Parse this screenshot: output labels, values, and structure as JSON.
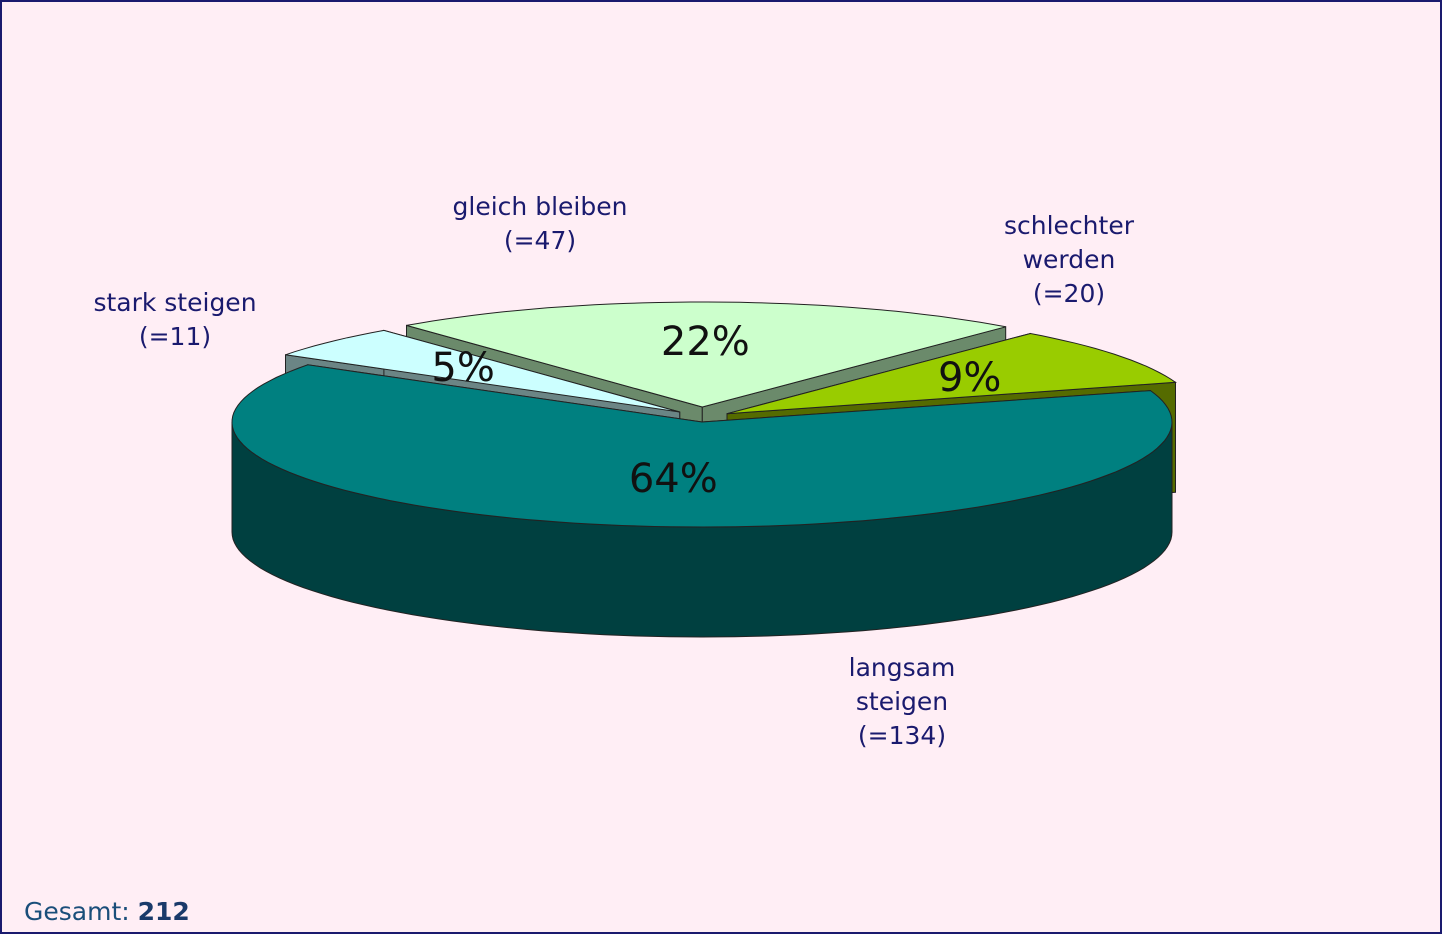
{
  "chart_data": {
    "type": "pie3d",
    "categories": [
      "gleich bleiben",
      "schlechter werden",
      "langsam steigen",
      "stark steigen"
    ],
    "values": [
      22,
      9,
      64,
      5
    ],
    "value_labels": [
      "22%",
      "9%",
      "64%",
      "5%"
    ],
    "count_labels": [
      "(=47)",
      "(=20)",
      "(=134)",
      "(=11)"
    ],
    "colors": [
      "#ccffcc",
      "#99cc00",
      "#008080",
      "#ccffff"
    ],
    "side_colors": [
      "#6b8a6b",
      "#556b00",
      "#004040",
      "#6b8585"
    ],
    "total_label": "Gesamt:",
    "total": 212
  }
}
